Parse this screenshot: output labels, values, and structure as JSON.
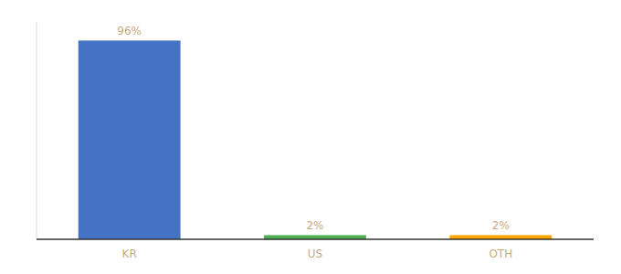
{
  "chart_data": {
    "type": "bar",
    "categories": [
      "KR",
      "US",
      "OTH"
    ],
    "values": [
      96,
      2,
      2
    ],
    "value_labels": [
      "96%",
      "2%",
      "2%"
    ],
    "colors": [
      "#4472c4",
      "#4caf50",
      "#ffa500"
    ],
    "ylim": [
      0,
      105
    ],
    "data_labels": true,
    "tick_labels": "x"
  }
}
